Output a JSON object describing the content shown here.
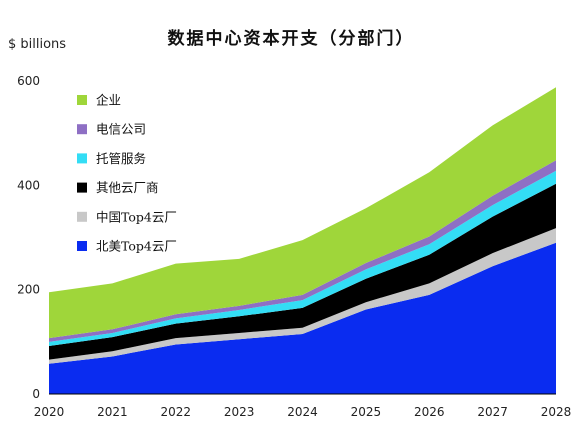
{
  "chart_data": {
    "type": "area",
    "stacked": true,
    "title": "数据中心资本开支（分部门）",
    "ylabel": "$ billions",
    "x": [
      "2020",
      "2021",
      "2022",
      "2023",
      "2024",
      "2025",
      "2026",
      "2027",
      "2028"
    ],
    "ylim": [
      0,
      600
    ],
    "yticks": [
      0,
      200,
      400,
      600
    ],
    "grid": false,
    "legend_position": "left",
    "series": [
      {
        "name": "北美Top4云厂",
        "color": "#0a2cf0",
        "values": [
          58,
          72,
          95,
          105,
          115,
          162,
          190,
          245,
          290
        ]
      },
      {
        "name": "中国Top4云厂",
        "color": "#c8c8c8",
        "values": [
          8,
          10,
          12,
          12,
          12,
          14,
          22,
          25,
          28
        ]
      },
      {
        "name": "其他云厂商",
        "color": "#000000",
        "values": [
          26,
          27,
          28,
          32,
          38,
          45,
          55,
          70,
          85
        ]
      },
      {
        "name": "托管服务",
        "color": "#33ddf5",
        "values": [
          8,
          8,
          10,
          12,
          15,
          18,
          20,
          22,
          25
        ]
      },
      {
        "name": "电信公司",
        "color": "#8e6fc4",
        "values": [
          7,
          7,
          8,
          8,
          10,
          12,
          15,
          18,
          20
        ]
      },
      {
        "name": "企业",
        "color": "#9fd63a",
        "values": [
          88,
          88,
          97,
          90,
          105,
          105,
          123,
          135,
          140
        ]
      }
    ]
  }
}
